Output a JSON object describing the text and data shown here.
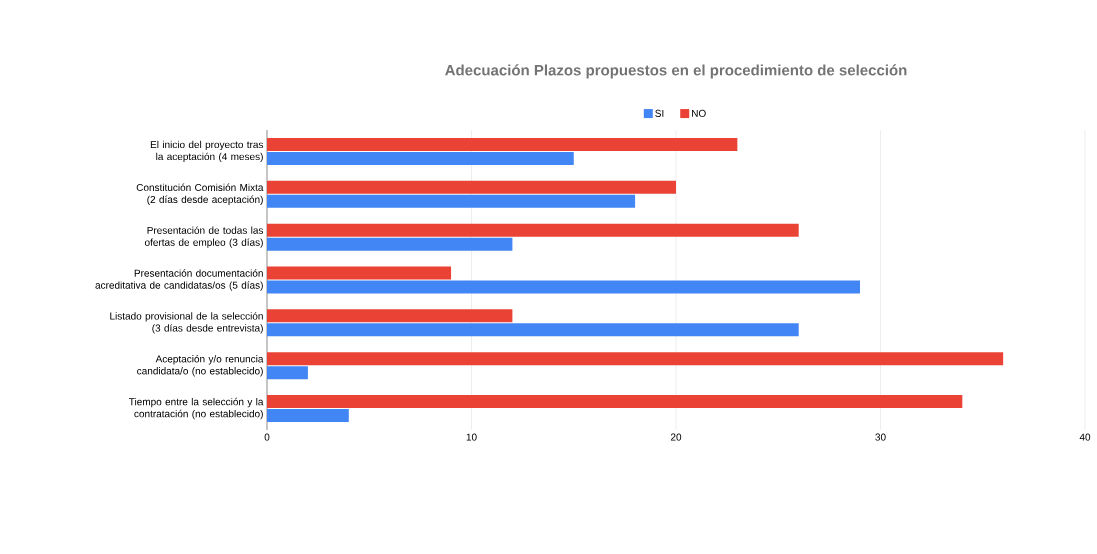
{
  "chart_data": {
    "type": "bar",
    "orientation": "horizontal",
    "title": "Adecuación Plazos propuestos en el procedimiento de selección",
    "categories": [
      "El inicio del proyecto tras la aceptación (4 meses)",
      "Constitución Comisión Mixta (2 días desde aceptación)",
      "Presentación de todas las ofertas de empleo (3 días)",
      "Presentación documentación acreditativa de candidatas/os (5 días)",
      "Listado provisional de la selección (3 días desde entrevista)",
      "Aceptación y/o renuncia candidata/o (no establecido)",
      "Tiempo entre la selección y la contratación (no establecido)"
    ],
    "series": [
      {
        "name": "SI",
        "color": "#4285f4",
        "values": [
          15,
          18,
          12,
          29,
          26,
          2,
          4
        ]
      },
      {
        "name": "NO",
        "color": "#ea4335",
        "values": [
          23,
          20,
          26,
          9,
          12,
          36,
          34
        ]
      }
    ],
    "xlim": [
      0,
      40
    ],
    "xticks": [
      0,
      10,
      20,
      30,
      40
    ],
    "grid": "x",
    "legend": "top"
  }
}
